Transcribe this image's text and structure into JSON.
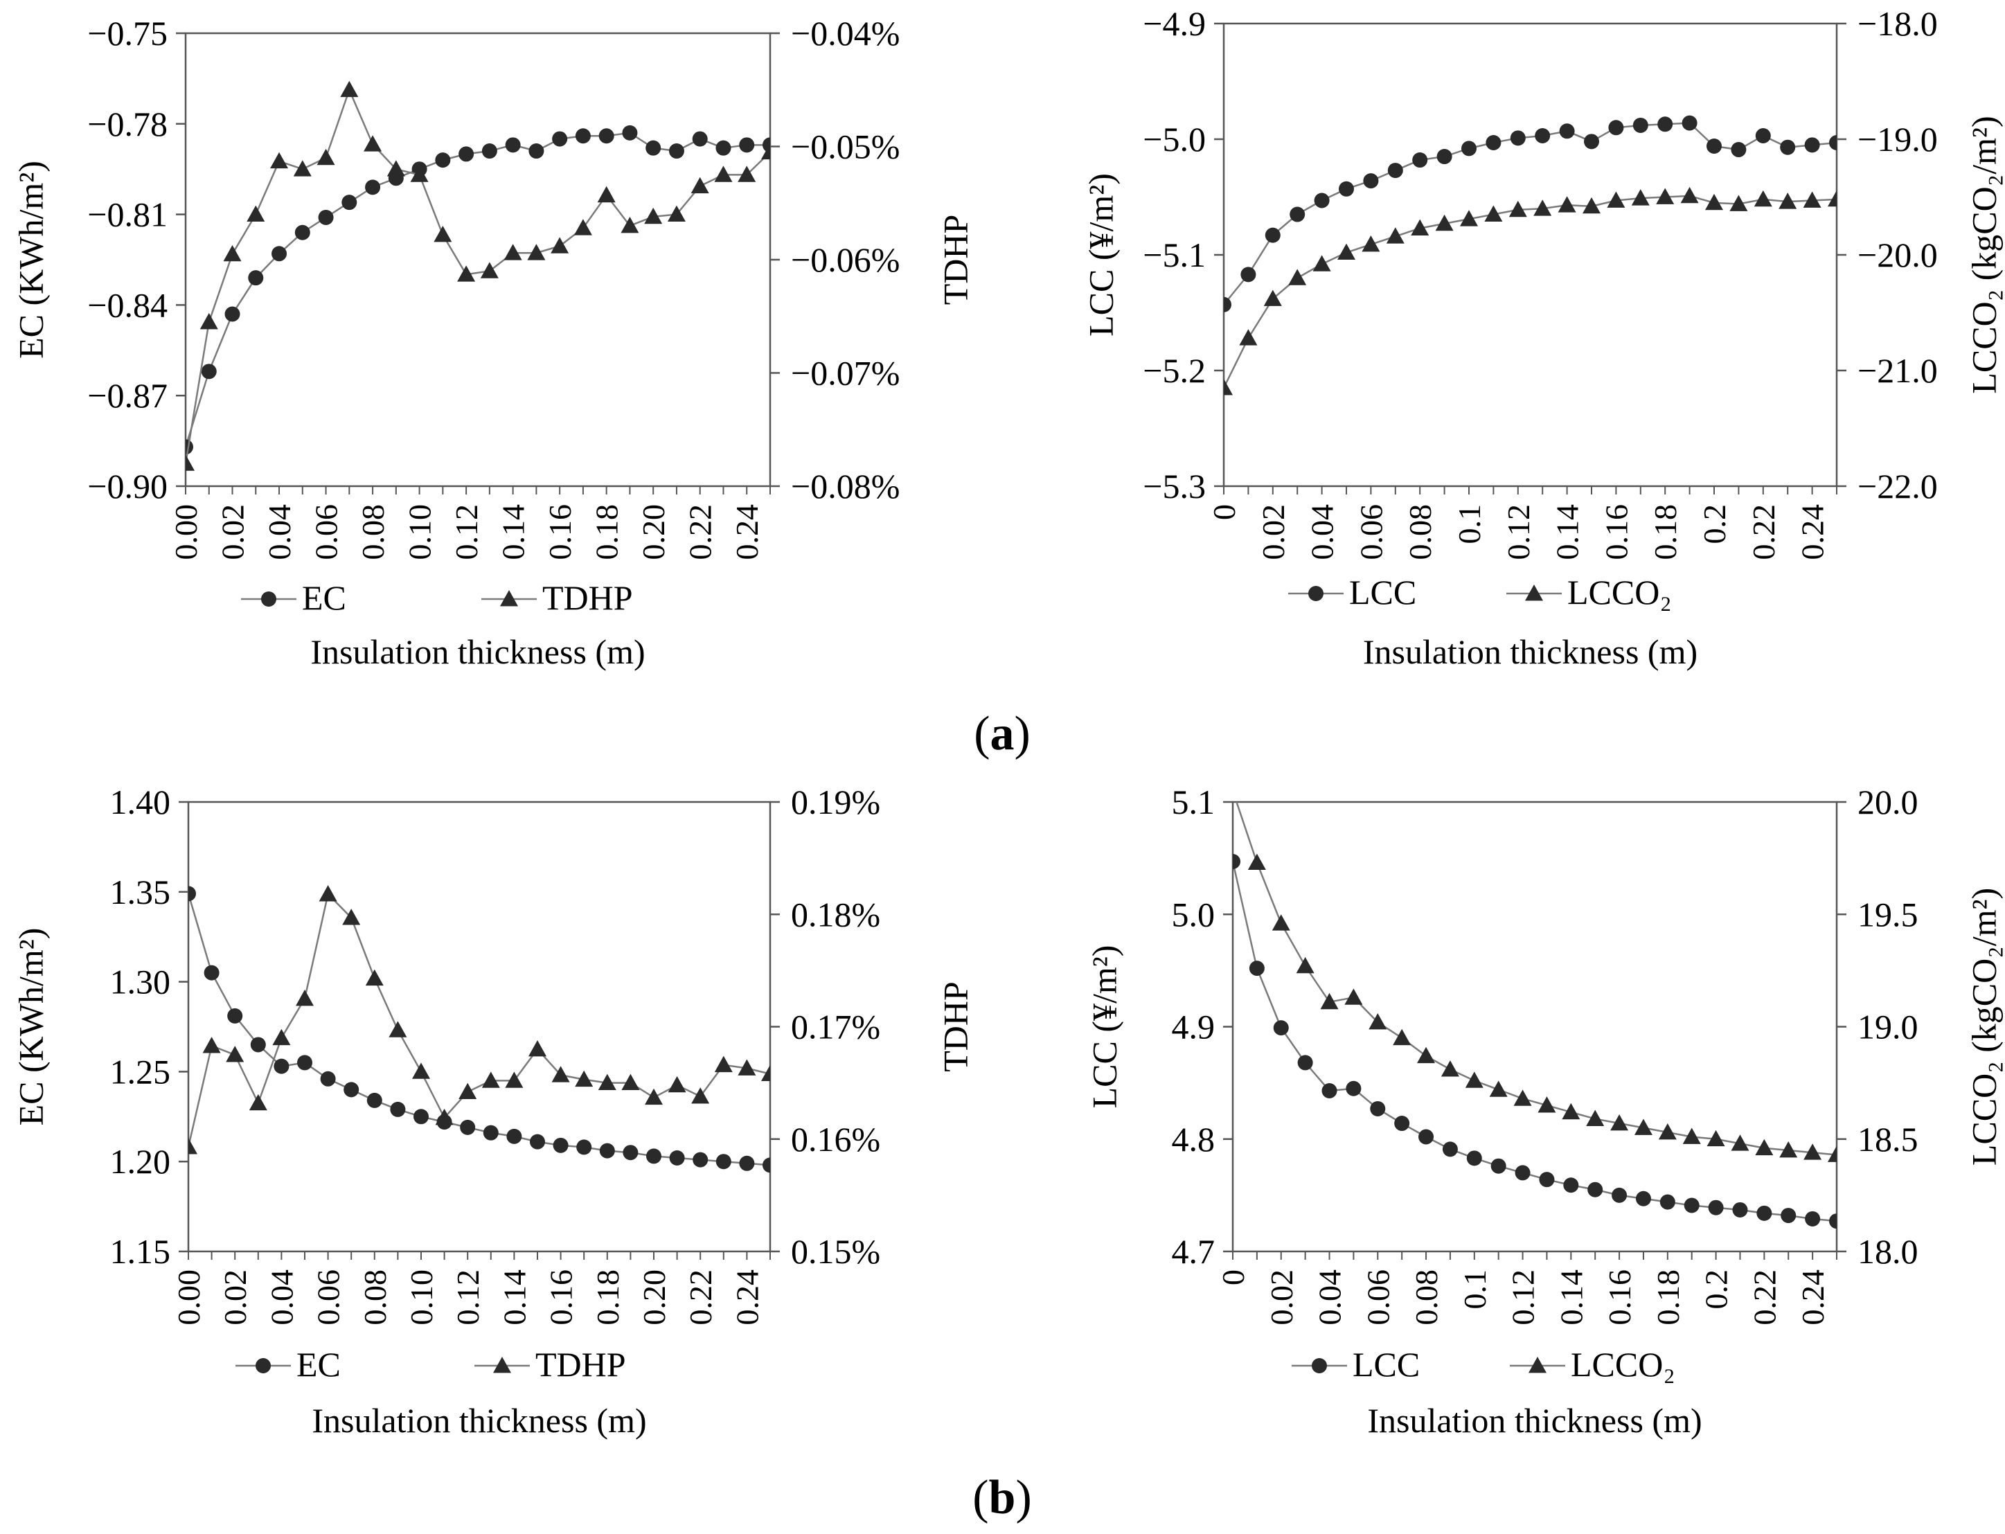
{
  "figure": {
    "panel_a_letter": "a",
    "panel_b_letter": "b"
  },
  "chart_data": [
    {
      "id": "a-left",
      "type": "line",
      "x": [
        0,
        0.01,
        0.02,
        0.03,
        0.04,
        0.05,
        0.06,
        0.07,
        0.08,
        0.09,
        0.1,
        0.11,
        0.12,
        0.13,
        0.14,
        0.15,
        0.16,
        0.17,
        0.18,
        0.19,
        0.2,
        0.21,
        0.22,
        0.23,
        0.24,
        0.25
      ],
      "xticks": [
        0,
        0.02,
        0.04,
        0.06,
        0.08,
        0.1,
        0.12,
        0.14,
        0.16,
        0.18,
        0.2,
        0.22,
        0.24
      ],
      "xtick_labels": [
        "0.00",
        "0.02",
        "0.04",
        "0.06",
        "0.08",
        "0.10",
        "0.12",
        "0.14",
        "0.16",
        "0.18",
        "0.20",
        "0.22",
        "0.24"
      ],
      "xlim": [
        0,
        0.25
      ],
      "xlabel": "Insulation thickness (m)",
      "ylabel_left": "EC (KWh/m²)",
      "ylabel_right": "TDHP",
      "ylim_left": [
        -0.9,
        -0.75
      ],
      "yticks_left": [
        -0.9,
        -0.87,
        -0.84,
        -0.81,
        -0.78,
        -0.75
      ],
      "ytick_labels_left": [
        "−0.90",
        "−0.87",
        "−0.84",
        "−0.81",
        "−0.78",
        "−0.75"
      ],
      "ylim_right": [
        -0.08,
        -0.04
      ],
      "yticks_right": [
        -0.08,
        -0.07,
        -0.06,
        -0.05,
        -0.04
      ],
      "ytick_labels_right": [
        "−0.08%",
        "−0.07%",
        "−0.06%",
        "−0.05%",
        "−0.04%"
      ],
      "series": [
        {
          "name": "EC",
          "axis": "left",
          "marker": "circle",
          "values": [
            -0.887,
            -0.862,
            -0.843,
            -0.831,
            -0.823,
            -0.816,
            -0.811,
            -0.806,
            -0.801,
            -0.798,
            -0.795,
            -0.792,
            -0.79,
            -0.789,
            -0.787,
            -0.789,
            -0.785,
            -0.784,
            -0.784,
            -0.783,
            -0.788,
            -0.789,
            -0.785,
            -0.788,
            -0.787,
            -0.787
          ]
        },
        {
          "name": "TDHP",
          "axis": "right",
          "marker": "triangle",
          "values": [
            -0.078,
            -0.0655,
            -0.0595,
            -0.056,
            -0.0513,
            -0.052,
            -0.051,
            -0.045,
            -0.0498,
            -0.052,
            -0.0525,
            -0.0578,
            -0.0613,
            -0.061,
            -0.0594,
            -0.0594,
            -0.0588,
            -0.0572,
            -0.0543,
            -0.057,
            -0.0562,
            -0.056,
            -0.0535,
            -0.0525,
            -0.0525,
            -0.0505
          ]
        }
      ],
      "legend": [
        "EC",
        "TDHP"
      ],
      "legend_position": "bottom"
    },
    {
      "id": "a-right",
      "type": "line",
      "x": [
        0,
        0.01,
        0.02,
        0.03,
        0.04,
        0.05,
        0.06,
        0.07,
        0.08,
        0.09,
        0.1,
        0.11,
        0.12,
        0.13,
        0.14,
        0.15,
        0.16,
        0.17,
        0.18,
        0.19,
        0.2,
        0.21,
        0.22,
        0.23,
        0.24,
        0.25
      ],
      "xticks": [
        0,
        0.02,
        0.04,
        0.06,
        0.08,
        0.1,
        0.12,
        0.14,
        0.16,
        0.18,
        0.2,
        0.22,
        0.24
      ],
      "xtick_labels": [
        "0",
        "0.02",
        "0.04",
        "0.06",
        "0.08",
        "0.1",
        "0.12",
        "0.14",
        "0.16",
        "0.18",
        "0.2",
        "0.22",
        "0.24"
      ],
      "xlim": [
        0,
        0.25
      ],
      "xlabel": "Insulation thickness (m)",
      "ylabel_left": "LCC (¥/m²)",
      "ylabel_right": "LCCO₂ (kgCO₂/m²)",
      "ylim_left": [
        -5.3,
        -4.9
      ],
      "yticks_left": [
        -5.3,
        -5.2,
        -5.1,
        -5.0,
        -4.9
      ],
      "ytick_labels_left": [
        "−5.3",
        "−5.2",
        "−5.1",
        "−5.0",
        "−4.9"
      ],
      "ylim_right": [
        -22.0,
        -18.0
      ],
      "yticks_right": [
        -22.0,
        -21.0,
        -20.0,
        -19.0,
        -18.0
      ],
      "ytick_labels_right": [
        "−22.0",
        "−21.0",
        "−20.0",
        "−19.0",
        "−18.0"
      ],
      "series": [
        {
          "name": "LCC",
          "axis": "left",
          "marker": "circle",
          "values": [
            -5.143,
            -5.117,
            -5.083,
            -5.065,
            -5.053,
            -5.043,
            -5.036,
            -5.027,
            -5.018,
            -5.015,
            -5.008,
            -5.003,
            -4.999,
            -4.997,
            -4.993,
            -5.002,
            -4.99,
            -4.988,
            -4.987,
            -4.986,
            -5.006,
            -5.009,
            -4.997,
            -5.007,
            -5.005,
            -5.003
          ]
        },
        {
          "name": "LCCO₂",
          "axis": "right",
          "marker": "triangle",
          "values": [
            -21.15,
            -20.72,
            -20.38,
            -20.2,
            -20.08,
            -19.98,
            -19.91,
            -19.84,
            -19.77,
            -19.73,
            -19.69,
            -19.65,
            -19.61,
            -19.6,
            -19.57,
            -19.58,
            -19.53,
            -19.51,
            -19.5,
            -19.49,
            -19.55,
            -19.56,
            -19.52,
            -19.54,
            -19.53,
            -19.52
          ]
        }
      ],
      "legend": [
        "LCC",
        "LCCO₂"
      ],
      "legend_position": "bottom"
    },
    {
      "id": "b-left",
      "type": "line",
      "x": [
        0,
        0.01,
        0.02,
        0.03,
        0.04,
        0.05,
        0.06,
        0.07,
        0.08,
        0.09,
        0.1,
        0.11,
        0.12,
        0.13,
        0.14,
        0.15,
        0.16,
        0.17,
        0.18,
        0.19,
        0.2,
        0.21,
        0.22,
        0.23,
        0.24,
        0.25
      ],
      "xticks": [
        0,
        0.02,
        0.04,
        0.06,
        0.08,
        0.1,
        0.12,
        0.14,
        0.16,
        0.18,
        0.2,
        0.22,
        0.24
      ],
      "xtick_labels": [
        "0.00",
        "0.02",
        "0.04",
        "0.06",
        "0.08",
        "0.10",
        "0.12",
        "0.14",
        "0.16",
        "0.18",
        "0.20",
        "0.22",
        "0.24"
      ],
      "xlim": [
        0,
        0.25
      ],
      "xlabel": "Insulation thickness (m)",
      "ylabel_left": "EC (KWh/m²)",
      "ylabel_right": "TDHP",
      "ylim_left": [
        1.15,
        1.4
      ],
      "yticks_left": [
        1.15,
        1.2,
        1.25,
        1.3,
        1.35,
        1.4
      ],
      "ytick_labels_left": [
        "1.15",
        "1.20",
        "1.25",
        "1.30",
        "1.35",
        "1.40"
      ],
      "ylim_right": [
        0.15,
        0.19
      ],
      "yticks_right": [
        0.15,
        0.16,
        0.17,
        0.18,
        0.19
      ],
      "ytick_labels_right": [
        "0.15%",
        "0.16%",
        "0.17%",
        "0.18%",
        "0.19%"
      ],
      "series": [
        {
          "name": "EC",
          "axis": "left",
          "marker": "circle",
          "values": [
            1.349,
            1.305,
            1.281,
            1.265,
            1.253,
            1.255,
            1.246,
            1.24,
            1.234,
            1.229,
            1.225,
            1.222,
            1.219,
            1.216,
            1.214,
            1.211,
            1.209,
            1.208,
            1.206,
            1.205,
            1.203,
            1.202,
            1.201,
            1.2,
            1.199,
            1.198
          ]
        },
        {
          "name": "TDHP",
          "axis": "right",
          "marker": "triangle",
          "values": [
            0.1593,
            0.1683,
            0.1675,
            0.1632,
            0.169,
            0.1725,
            0.1818,
            0.1797,
            0.1743,
            0.1697,
            0.166,
            0.1619,
            0.1642,
            0.1652,
            0.1652,
            0.168,
            0.1657,
            0.1653,
            0.165,
            0.165,
            0.1637,
            0.1648,
            0.1638,
            0.1666,
            0.1663,
            0.1658
          ]
        }
      ],
      "legend": [
        "EC",
        "TDHP"
      ],
      "legend_position": "bottom"
    },
    {
      "id": "b-right",
      "type": "line",
      "x": [
        0,
        0.01,
        0.02,
        0.03,
        0.04,
        0.05,
        0.06,
        0.07,
        0.08,
        0.09,
        0.1,
        0.11,
        0.12,
        0.13,
        0.14,
        0.15,
        0.16,
        0.17,
        0.18,
        0.19,
        0.2,
        0.21,
        0.22,
        0.23,
        0.24,
        0.25
      ],
      "xticks": [
        0,
        0.02,
        0.04,
        0.06,
        0.08,
        0.1,
        0.12,
        0.14,
        0.16,
        0.18,
        0.2,
        0.22,
        0.24
      ],
      "xtick_labels": [
        "0",
        "0.02",
        "0.04",
        "0.06",
        "0.08",
        "0.1",
        "0.12",
        "0.14",
        "0.16",
        "0.18",
        "0.2",
        "0.22",
        "0.24"
      ],
      "xlim": [
        0,
        0.25
      ],
      "xlabel": "Insulation thickness (m)",
      "ylabel_left": "LCC (¥/m²)",
      "ylabel_right": "LCCO₂ (kgCO₂/m²)",
      "ylim_left": [
        4.7,
        5.1
      ],
      "yticks_left": [
        4.7,
        4.8,
        4.9,
        5.0,
        5.1
      ],
      "ytick_labels_left": [
        "4.7",
        "4.8",
        "4.9",
        "5.0",
        "5.1"
      ],
      "ylim_right": [
        18.0,
        20.0
      ],
      "yticks_right": [
        18.0,
        18.5,
        19.0,
        19.5,
        20.0
      ],
      "ytick_labels_right": [
        "18.0",
        "18.5",
        "19.0",
        "19.5",
        "20.0"
      ],
      "series": [
        {
          "name": "LCC",
          "axis": "left",
          "marker": "circle",
          "values": [
            5.047,
            4.952,
            4.899,
            4.868,
            4.843,
            4.845,
            4.827,
            4.814,
            4.802,
            4.791,
            4.783,
            4.776,
            4.77,
            4.764,
            4.759,
            4.755,
            4.75,
            4.747,
            4.744,
            4.741,
            4.739,
            4.737,
            4.734,
            4.732,
            4.729,
            4.727
          ]
        },
        {
          "name": "LCCO₂",
          "axis": "right",
          "marker": "triangle",
          "values": [
            20.05,
            19.73,
            19.46,
            19.27,
            19.11,
            19.13,
            19.02,
            18.95,
            18.87,
            18.81,
            18.76,
            18.72,
            18.68,
            18.65,
            18.62,
            18.59,
            18.57,
            18.55,
            18.53,
            18.51,
            18.5,
            18.48,
            18.46,
            18.45,
            18.44,
            18.43
          ]
        }
      ],
      "legend": [
        "LCC",
        "LCCO₂"
      ],
      "legend_position": "bottom"
    }
  ]
}
